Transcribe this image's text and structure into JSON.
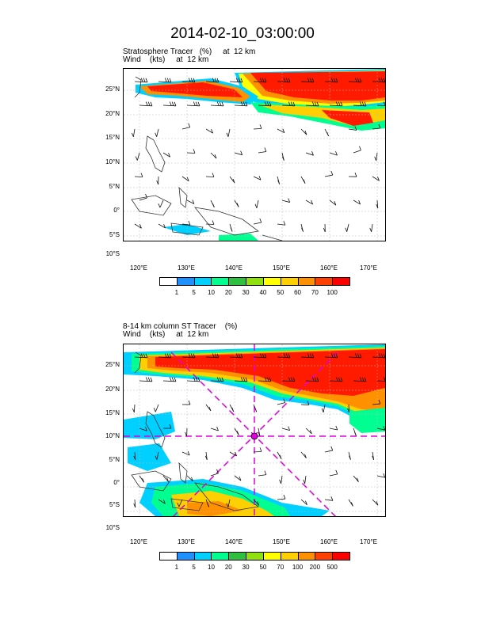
{
  "title": "2014-02-10_03:00:00",
  "lat_labels": [
    "25°N",
    "20°N",
    "15°N",
    "10°N",
    "5°N",
    "0°",
    "5°S",
    "10°S"
  ],
  "lon_labels": [
    "120°E",
    "130°E",
    "140°E",
    "150°E",
    "160°E",
    "170°E"
  ],
  "top_panel": {
    "label_line1": "Stratosphere Tracer   (%)     at  12 km",
    "label_line2": "Wind    (kts)     at  12 km",
    "colorbar_labels": [
      "1",
      "5",
      "10",
      "20",
      "30",
      "40",
      "50",
      "60",
      "70",
      "100"
    ],
    "colorbar_colors": [
      "#ffffff",
      "#1e90ff",
      "#00d0ff",
      "#00ff90",
      "#30c040",
      "#90e010",
      "#ffff00",
      "#ffd000",
      "#ff9000",
      "#ff4000",
      "#ff0000"
    ]
  },
  "bottom_panel": {
    "label_line1": "8-14 km column ST Tracer    (%)",
    "label_line2": "Wind    (kts)     at  12 km",
    "colorbar_labels": [
      "1",
      "5",
      "10",
      "20",
      "30",
      "50",
      "70",
      "100",
      "200",
      "500"
    ],
    "colorbar_colors": [
      "#ffffff",
      "#1e90ff",
      "#00d0ff",
      "#00ff90",
      "#30c040",
      "#90e010",
      "#ffff00",
      "#ffd000",
      "#ff9000",
      "#ff4000",
      "#ff0000"
    ]
  },
  "colors": {
    "marker_lines": "#e000e0",
    "tracer_high": "#ff1a00",
    "tracer_mid": "#ff9000",
    "tracer_low": "#00c060"
  }
}
